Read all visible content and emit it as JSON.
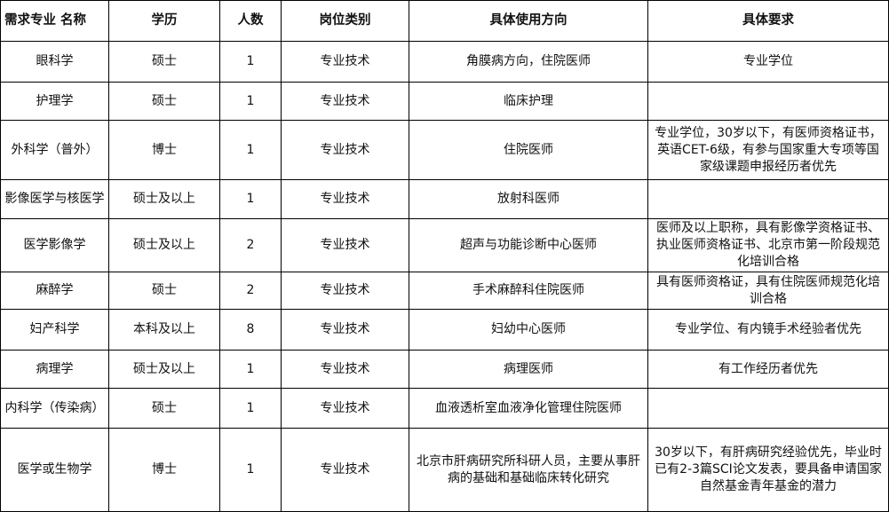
{
  "headers": [
    "需求专业 名称",
    "学历",
    "人数",
    "岗位类别",
    "具体使用方向",
    "具体要求"
  ],
  "rows": [
    [
      "眼科学",
      "硕士",
      "1",
      "专业技术",
      "角膜病方向，住院医师",
      "专业学位"
    ],
    [
      "护理学",
      "硕士",
      "1",
      "专业技术",
      "临床护理",
      ""
    ],
    [
      "外科学（普外）",
      "博士",
      "1",
      "专业技术",
      "住院医师",
      "专业学位，30岁以下，有医师资格证书，英语CET-6级，有参与国家重大专项等国家级课题申报经历者优先"
    ],
    [
      "影像医学与核医学",
      "硕士及以上",
      "1",
      "专业技术",
      "放射科医师",
      ""
    ],
    [
      "医学影像学",
      "硕士及以上",
      "2",
      "专业技术",
      "超声与功能诊断中心医师",
      "医师及以上职称，具有影像学资格证书、执业医师资格证书、北京市第一阶段规范化培训合格"
    ],
    [
      "麻醉学",
      "硕士",
      "2",
      "专业技术",
      "手术麻醉科住院医师",
      "具有医师资格证，具有住院医师规范化培训合格"
    ],
    [
      "妇产科学",
      "本科及以上",
      "8",
      "专业技术",
      "妇幼中心医师",
      "专业学位、有内镜手术经验者优先"
    ],
    [
      "病理学",
      "硕士及以上",
      "1",
      "专业技术",
      "病理医师",
      "有工作经历者优先"
    ],
    [
      "内科学（传染病）",
      "硕士",
      "1",
      "专业技术",
      "血液透析室血液净化管理住院医师",
      ""
    ],
    [
      "医学或生物学",
      "博士",
      "1",
      "专业技术",
      "北京市肝病研究所科研人员，主要从事肝病的基础和基础临床转化研究",
      "30岁以下，有肝病研究经验优先，毕业时已有2-3篇SCI论文发表，要具备申请国家自然基金青年基金的潜力"
    ]
  ]
}
